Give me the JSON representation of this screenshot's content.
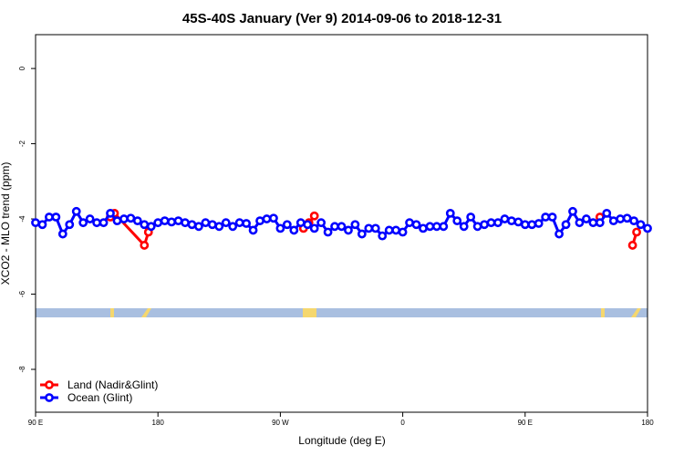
{
  "chart_data": {
    "type": "line",
    "title": "45S-40S January (Ver 9)   2014-09-06 to 2018-12-31",
    "x_label": "Longitude (deg E)",
    "y_label": "XCO2 - MLO trend (ppm)",
    "xlim": [
      90,
      540
    ],
    "ylim": [
      -9.14,
      0.9
    ],
    "xticks": [
      {
        "value": 90,
        "label": "90 E"
      },
      180,
      {
        "value": 270,
        "label": "90 W"
      },
      {
        "value": 360,
        "label": "0"
      },
      {
        "value": 450,
        "label": "90 E"
      },
      {
        "value": 540,
        "label": "180"
      }
    ],
    "yticks": [
      0,
      -2,
      -4,
      -6,
      -8
    ],
    "legend": "bottom-left",
    "series": [
      {
        "name": "Land (Nadir&Glint)",
        "color": "#ff0000",
        "x": [
          145,
          148,
          170,
          173,
          230,
          287,
          291,
          295,
          400,
          505,
          520,
          529,
          532
        ],
        "values": [
          -3.95,
          -3.85,
          -4.7,
          -4.35,
          null,
          -4.25,
          -4.1,
          -3.92,
          null,
          -3.95,
          null,
          -4.7,
          -4.35
        ]
      },
      {
        "name": "Ocean (Glint)",
        "color": "#0000ff",
        "x": [
          90,
          95,
          100,
          105,
          110,
          115,
          120,
          125,
          130,
          135,
          140,
          145,
          150,
          155,
          160,
          165,
          170,
          175,
          180,
          185,
          190,
          195,
          200,
          205,
          210,
          215,
          220,
          225,
          230,
          235,
          240,
          245,
          250,
          255,
          260,
          265,
          270,
          275,
          280,
          285,
          290,
          295,
          300,
          305,
          310,
          315,
          320,
          325,
          330,
          335,
          340,
          345,
          350,
          355,
          360,
          365,
          370,
          375,
          380,
          385,
          390,
          395,
          400,
          405,
          410,
          415,
          420,
          425,
          430,
          435,
          440,
          445,
          450,
          455,
          460,
          465,
          470,
          475,
          480,
          485,
          490,
          495,
          500,
          505,
          510,
          515,
          520,
          525,
          530,
          535,
          540
        ],
        "values": [
          -4.1,
          -4.15,
          -3.95,
          -3.95,
          -4.4,
          -4.15,
          -3.8,
          -4.1,
          -4.0,
          -4.1,
          -4.1,
          -3.85,
          -4.05,
          -4.0,
          -3.98,
          -4.05,
          -4.15,
          -4.2,
          -4.1,
          -4.05,
          -4.08,
          -4.05,
          -4.1,
          -4.15,
          -4.2,
          -4.1,
          -4.15,
          -4.2,
          -4.1,
          -4.2,
          -4.1,
          -4.12,
          -4.3,
          -4.05,
          -4.0,
          -3.98,
          -4.25,
          -4.15,
          -4.3,
          -4.1,
          -4.15,
          -4.25,
          -4.1,
          -4.35,
          -4.2,
          -4.2,
          -4.3,
          -4.15,
          -4.4,
          -4.25,
          -4.25,
          -4.45,
          -4.3,
          -4.3,
          -4.35,
          -4.1,
          -4.15,
          -4.25,
          -4.2,
          -4.2,
          -4.2,
          -3.85,
          -4.05,
          -4.2,
          -3.95,
          -4.2,
          -4.15,
          -4.1,
          -4.1,
          -4.0,
          -4.05,
          -4.08,
          -4.15,
          -4.15,
          -4.12,
          -3.95,
          -3.95,
          -4.4,
          -4.15,
          -3.8,
          -4.1,
          -4.0,
          -4.1,
          -4.1,
          -3.85,
          -4.05,
          -4.0,
          -3.98,
          -4.05,
          -4.15,
          -4.25
        ]
      }
    ]
  }
}
